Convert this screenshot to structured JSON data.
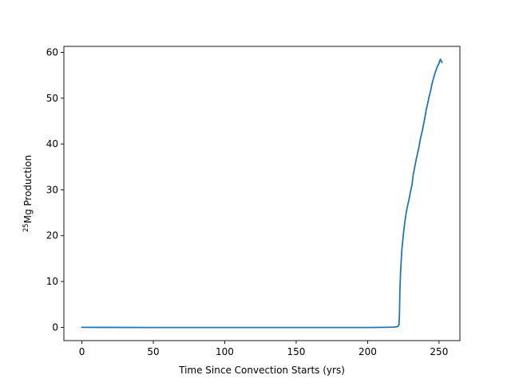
{
  "chart_data": {
    "type": "line",
    "title": "",
    "xlabel": "Time Since Convection Starts (yrs)",
    "ylabel": {
      "superscript": "25",
      "main": "Mg Production"
    },
    "xlim": [
      -12.6,
      264.6
    ],
    "ylim": [
      -2.9,
      61.3
    ],
    "xticks": [
      0,
      50,
      100,
      150,
      200,
      250
    ],
    "yticks": [
      0,
      10,
      20,
      30,
      40,
      50,
      60
    ],
    "grid": false,
    "legend": "none",
    "series": [
      {
        "color": "#1f77b4",
        "x": [
          0,
          50,
          100,
          150,
          200,
          212,
          218,
          220,
          221,
          221.5,
          222,
          222.3,
          222.6,
          223,
          223.5,
          224,
          225,
          226,
          227,
          228,
          229,
          230,
          231,
          232,
          233,
          234,
          235,
          236,
          237,
          238,
          239,
          240,
          241,
          242,
          243,
          244,
          245,
          246,
          247,
          248,
          249,
          250,
          250.5,
          251,
          251.5,
          252
        ],
        "y": [
          0,
          -0.05,
          -0.05,
          -0.05,
          -0.05,
          0,
          0.05,
          0.1,
          0.2,
          0.3,
          0.6,
          3.0,
          8.0,
          11.5,
          14.5,
          17.0,
          20.2,
          22.8,
          25.0,
          26.6,
          27.9,
          29.6,
          31.0,
          33.4,
          35.0,
          36.6,
          38.0,
          39.4,
          41.2,
          42.5,
          44.0,
          45.6,
          47.4,
          48.8,
          50.3,
          51.5,
          53.0,
          54.2,
          55.3,
          56.2,
          57.0,
          57.6,
          58.2,
          58.5,
          58.1,
          57.8
        ]
      }
    ]
  }
}
